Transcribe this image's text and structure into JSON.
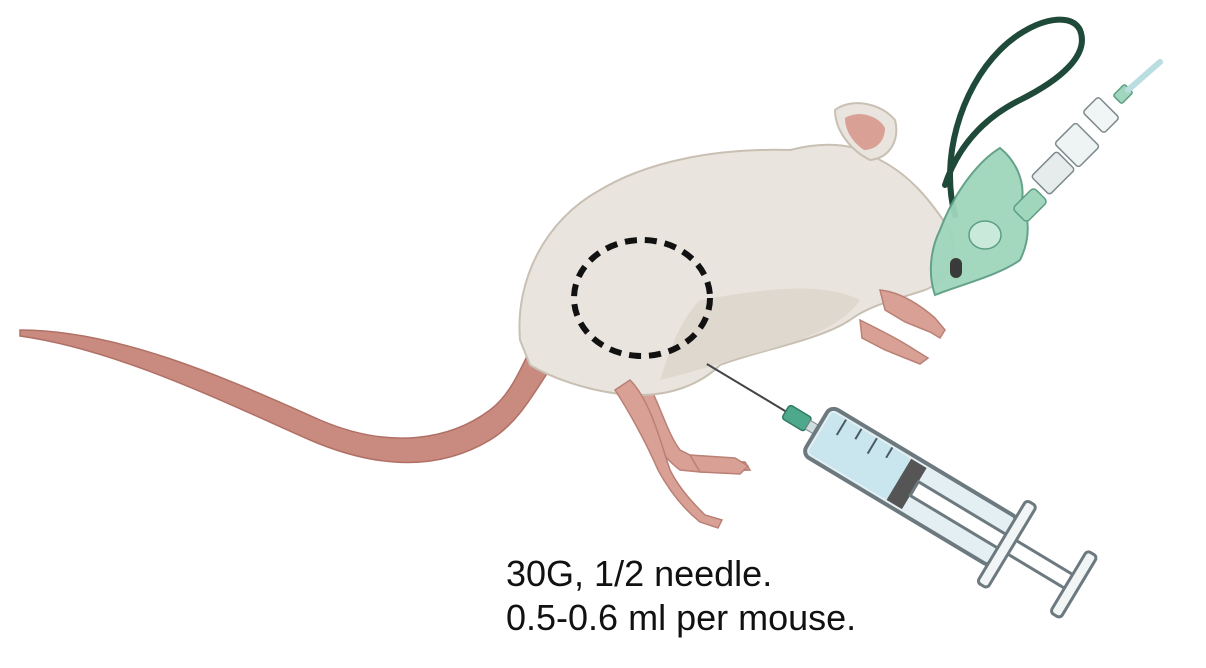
{
  "caption": {
    "line1": "30G, 1/2 needle.",
    "line2": "0.5-0.6 ml per mouse."
  },
  "colors": {
    "background": "#ffffff",
    "mouse_body": "#e9e4dd",
    "mouse_shade": "#d9d2c8",
    "mouse_pink": "#d9a096",
    "tail": "#c98a80",
    "injection_circle": "#111111",
    "mask": "#9fd6bc",
    "mask_strap": "#1f4a3a",
    "syringe_barrel": "#e4eff3",
    "syringe_liquid": "#c9e6ef",
    "syringe_outline": "#6c7a80",
    "needle_hub": "#4ea88c"
  },
  "icons": [
    "mouse-illustration",
    "anesthesia-mask-icon",
    "syringe-icon",
    "injection-site-marker"
  ]
}
